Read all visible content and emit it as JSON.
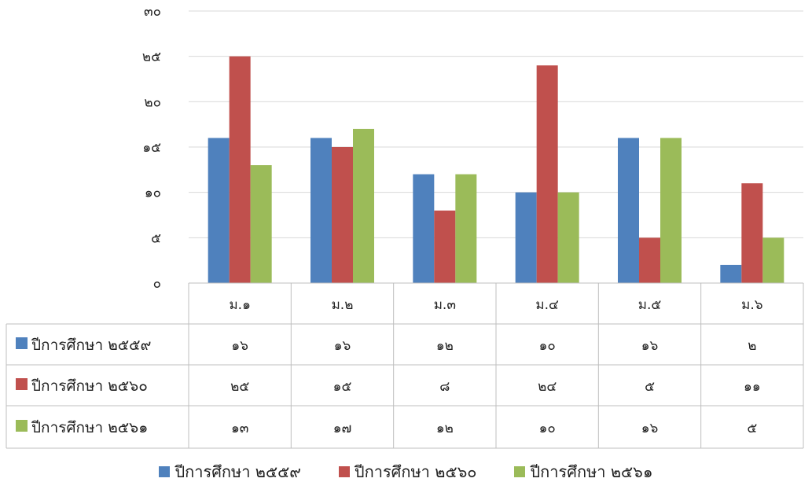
{
  "chart_data": {
    "type": "bar",
    "categories": [
      "ม.๑",
      "ม.๒",
      "ม.๓",
      "ม.๔",
      "ม.๕",
      "ม.๖"
    ],
    "series": [
      {
        "name": "ปีการศึกษา ๒๕๕๙",
        "color": "#4F81BD",
        "values": [
          16,
          16,
          12,
          10,
          16,
          2
        ],
        "labels": [
          "๑๖",
          "๑๖",
          "๑๒",
          "๑๐",
          "๑๖",
          "๒"
        ]
      },
      {
        "name": "ปีการศึกษา ๒๕๖๐",
        "color": "#C0504D",
        "values": [
          25,
          15,
          8,
          24,
          5,
          11
        ],
        "labels": [
          "๒๕",
          "๑๕",
          "๘",
          "๒๔",
          "๕",
          "๑๑"
        ]
      },
      {
        "name": "ปีการศึกษา ๒๕๖๑",
        "color": "#9BBB59",
        "values": [
          13,
          17,
          12,
          10,
          16,
          5
        ],
        "labels": [
          "๑๓",
          "๑๗",
          "๑๒",
          "๑๐",
          "๑๖",
          "๕"
        ]
      }
    ],
    "ylim": [
      0,
      30
    ],
    "yticks": [
      0,
      5,
      10,
      15,
      20,
      25,
      30
    ],
    "ytick_labels": [
      "๐",
      "๕",
      "๑๐",
      "๑๕",
      "๒๐",
      "๒๕",
      "๓๐"
    ],
    "grid": true,
    "data_table": true,
    "legend_position": "bottom"
  }
}
